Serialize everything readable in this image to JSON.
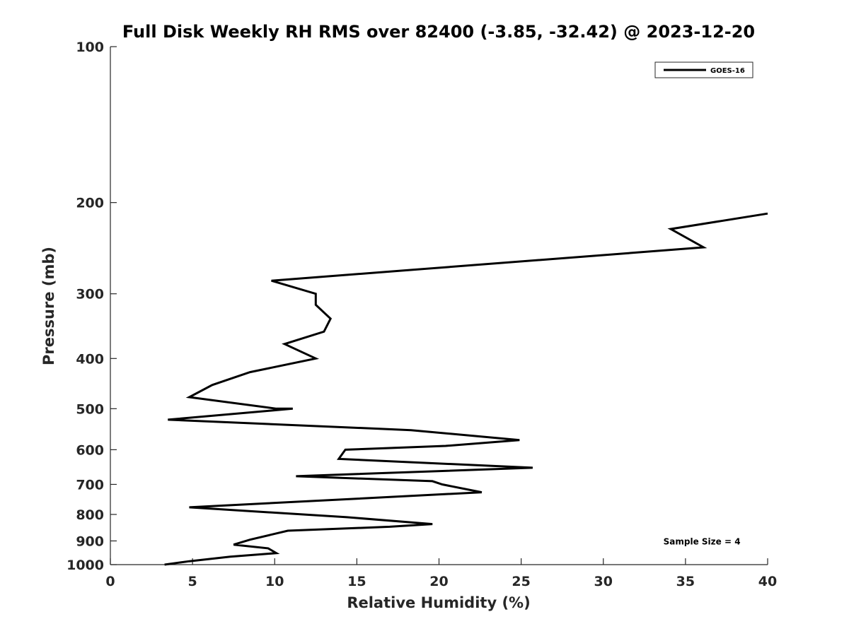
{
  "chart_data": {
    "type": "line",
    "title": "Full Disk Weekly RH RMS over 82400 (-3.85, -32.42) @ 2023-12-20",
    "xlabel": "Relative Humidity (%)",
    "ylabel": "Pressure (mb)",
    "xlim": [
      0,
      40
    ],
    "ylim": [
      100,
      1000
    ],
    "y_scale": "log",
    "y_reversed": true,
    "grid": false,
    "legend_position": "top-right",
    "x_ticks": [
      0,
      5,
      10,
      15,
      20,
      25,
      30,
      35,
      40
    ],
    "y_ticks": [
      100,
      200,
      300,
      400,
      500,
      600,
      700,
      800,
      900,
      1000
    ],
    "series": [
      {
        "name": "GOES-16",
        "color": "#000000",
        "points": [
          {
            "x": 40.0,
            "y": 210
          },
          {
            "x": 34.1,
            "y": 225
          },
          {
            "x": 36.1,
            "y": 244
          },
          {
            "x": 9.8,
            "y": 283
          },
          {
            "x": 12.5,
            "y": 300
          },
          {
            "x": 12.5,
            "y": 315
          },
          {
            "x": 13.4,
            "y": 335
          },
          {
            "x": 13.0,
            "y": 355
          },
          {
            "x": 10.6,
            "y": 375
          },
          {
            "x": 12.5,
            "y": 400
          },
          {
            "x": 8.5,
            "y": 425
          },
          {
            "x": 6.2,
            "y": 450
          },
          {
            "x": 4.8,
            "y": 475
          },
          {
            "x": 10.1,
            "y": 500
          },
          {
            "x": 11.1,
            "y": 500
          },
          {
            "x": 3.5,
            "y": 525
          },
          {
            "x": 18.3,
            "y": 550
          },
          {
            "x": 24.9,
            "y": 575
          },
          {
            "x": 20.4,
            "y": 590
          },
          {
            "x": 14.3,
            "y": 600
          },
          {
            "x": 13.9,
            "y": 625
          },
          {
            "x": 25.7,
            "y": 650
          },
          {
            "x": 11.3,
            "y": 675
          },
          {
            "x": 19.6,
            "y": 690
          },
          {
            "x": 20.2,
            "y": 700
          },
          {
            "x": 22.6,
            "y": 725
          },
          {
            "x": 4.8,
            "y": 775
          },
          {
            "x": 14.4,
            "y": 810
          },
          {
            "x": 19.6,
            "y": 835
          },
          {
            "x": 17.0,
            "y": 845
          },
          {
            "x": 10.8,
            "y": 860
          },
          {
            "x": 8.5,
            "y": 895
          },
          {
            "x": 7.5,
            "y": 915
          },
          {
            "x": 9.6,
            "y": 930
          },
          {
            "x": 10.1,
            "y": 950
          },
          {
            "x": 7.3,
            "y": 965
          },
          {
            "x": 4.8,
            "y": 985
          },
          {
            "x": 3.3,
            "y": 1000
          }
        ]
      }
    ],
    "annotations": [
      {
        "text": "Sample Size = 4",
        "x": 36.0,
        "y": 900
      }
    ]
  }
}
